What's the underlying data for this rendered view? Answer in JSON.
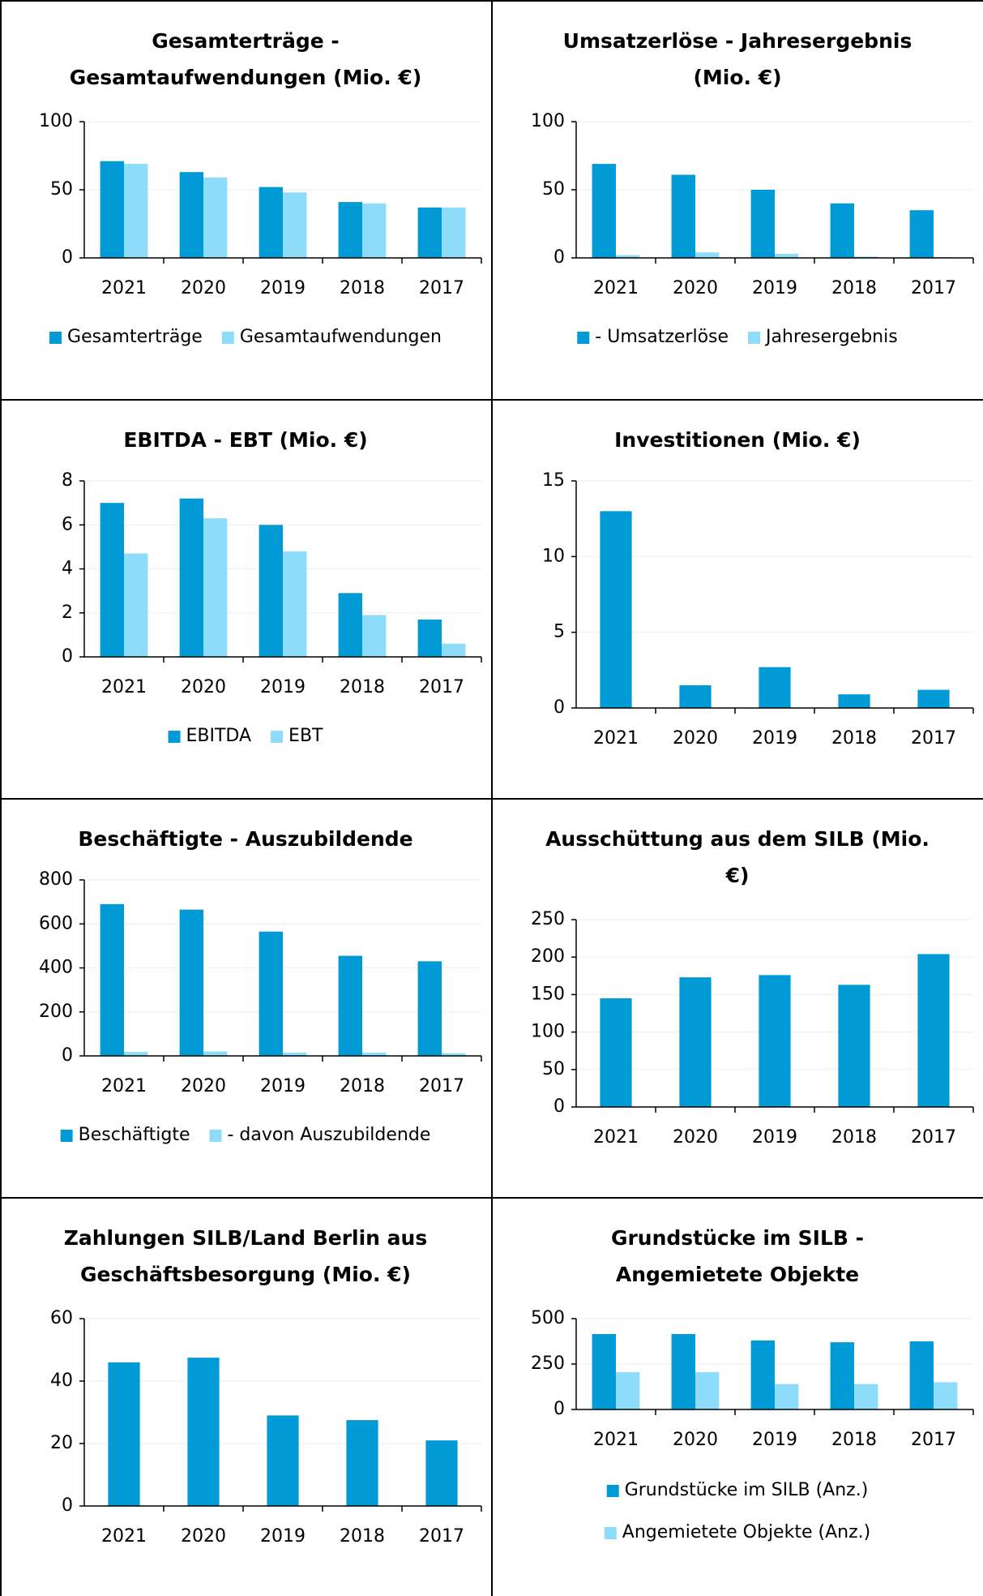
{
  "chart_data": [
    {
      "type": "bar",
      "title": [
        "Gesamterträge -",
        "Gesamtaufwendungen (Mio. €)"
      ],
      "categories": [
        "2021",
        "2020",
        "2019",
        "2018",
        "2017"
      ],
      "series": [
        {
          "name": "Gesamterträge",
          "color": "#009ad6",
          "values": [
            71,
            63,
            52,
            41,
            37
          ]
        },
        {
          "name": "Gesamtaufwendungen",
          "color": "#8ddcf9",
          "values": [
            69,
            59,
            48,
            40,
            37
          ]
        }
      ],
      "ylim": [
        0,
        100
      ],
      "yticks": [
        0,
        50,
        100
      ],
      "legend": "row",
      "grid": true
    },
    {
      "type": "bar",
      "title": [
        "Umsatzerlöse - Jahresergebnis",
        "(Mio. €)"
      ],
      "categories": [
        "2021",
        "2020",
        "2019",
        "2018",
        "2017"
      ],
      "series": [
        {
          "name": "- Umsatzerlöse",
          "color": "#009ad6",
          "values": [
            69,
            61,
            50,
            40,
            35
          ]
        },
        {
          "name": "Jahresergebnis",
          "color": "#8ddcf9",
          "values": [
            2,
            4,
            3,
            1,
            0.5
          ]
        }
      ],
      "ylim": [
        0,
        100
      ],
      "yticks": [
        0,
        50,
        100
      ],
      "legend": "row",
      "grid": true
    },
    {
      "type": "bar",
      "title": [
        "EBITDA - EBT (Mio. €)"
      ],
      "categories": [
        "2021",
        "2020",
        "2019",
        "2018",
        "2017"
      ],
      "series": [
        {
          "name": "EBITDA",
          "color": "#009ad6",
          "values": [
            7.0,
            7.2,
            6.0,
            2.9,
            1.7
          ]
        },
        {
          "name": "EBT",
          "color": "#8ddcf9",
          "values": [
            4.7,
            6.3,
            4.8,
            1.9,
            0.6
          ]
        }
      ],
      "ylim": [
        0,
        8
      ],
      "yticks": [
        0,
        2,
        4,
        6,
        8
      ],
      "legend": "row",
      "grid": true
    },
    {
      "type": "bar",
      "title": [
        "Investitionen (Mio. €)"
      ],
      "categories": [
        "2021",
        "2020",
        "2019",
        "2018",
        "2017"
      ],
      "series": [
        {
          "name": "Investitionen",
          "color": "#009ad6",
          "values": [
            13,
            1.5,
            2.7,
            0.9,
            1.2
          ]
        }
      ],
      "ylim": [
        0,
        15
      ],
      "yticks": [
        0,
        5,
        10,
        15
      ],
      "legend": "none",
      "grid": true
    },
    {
      "type": "bar",
      "title": [
        "Beschäftigte - Auszubildende"
      ],
      "categories": [
        "2021",
        "2020",
        "2019",
        "2018",
        "2017"
      ],
      "series": [
        {
          "name": "Beschäftigte",
          "color": "#009ad6",
          "values": [
            690,
            665,
            565,
            455,
            430
          ]
        },
        {
          "name": "- davon Auszubildende",
          "color": "#8ddcf9",
          "values": [
            18,
            20,
            15,
            15,
            12
          ]
        }
      ],
      "ylim": [
        0,
        800
      ],
      "yticks": [
        0,
        200,
        400,
        600,
        800
      ],
      "legend": "row",
      "grid": true
    },
    {
      "type": "bar",
      "title": [
        "Ausschüttung aus dem SILB (Mio.",
        "€)"
      ],
      "categories": [
        "2021",
        "2020",
        "2019",
        "2018",
        "2017"
      ],
      "series": [
        {
          "name": "Ausschüttung",
          "color": "#009ad6",
          "values": [
            145,
            173,
            176,
            163,
            204
          ]
        }
      ],
      "ylim": [
        0,
        250
      ],
      "yticks": [
        0,
        50,
        100,
        150,
        200,
        250
      ],
      "legend": "none",
      "grid": true
    },
    {
      "type": "bar",
      "title": [
        "Zahlungen SILB/Land Berlin aus",
        "Geschäftsbesorgung (Mio. €)"
      ],
      "categories": [
        "2021",
        "2020",
        "2019",
        "2018",
        "2017"
      ],
      "series": [
        {
          "name": "Zahlungen",
          "color": "#009ad6",
          "values": [
            46,
            47.5,
            29,
            27.5,
            21
          ]
        }
      ],
      "ylim": [
        0,
        60
      ],
      "yticks": [
        0,
        20,
        40,
        60
      ],
      "legend": "none",
      "grid": true
    },
    {
      "type": "bar",
      "title": [
        "Grundstücke im SILB -",
        "Angemietete Objekte"
      ],
      "categories": [
        "2021",
        "2020",
        "2019",
        "2018",
        "2017"
      ],
      "series": [
        {
          "name": "Grundstücke im SILB (Anz.)",
          "color": "#009ad6",
          "values": [
            415,
            415,
            380,
            370,
            375
          ]
        },
        {
          "name": "Angemietete Objekte (Anz.)",
          "color": "#8ddcf9",
          "values": [
            205,
            205,
            140,
            140,
            150
          ]
        }
      ],
      "ylim": [
        0,
        500
      ],
      "yticks": [
        0,
        250,
        500
      ],
      "legend": "column",
      "grid": true
    }
  ]
}
